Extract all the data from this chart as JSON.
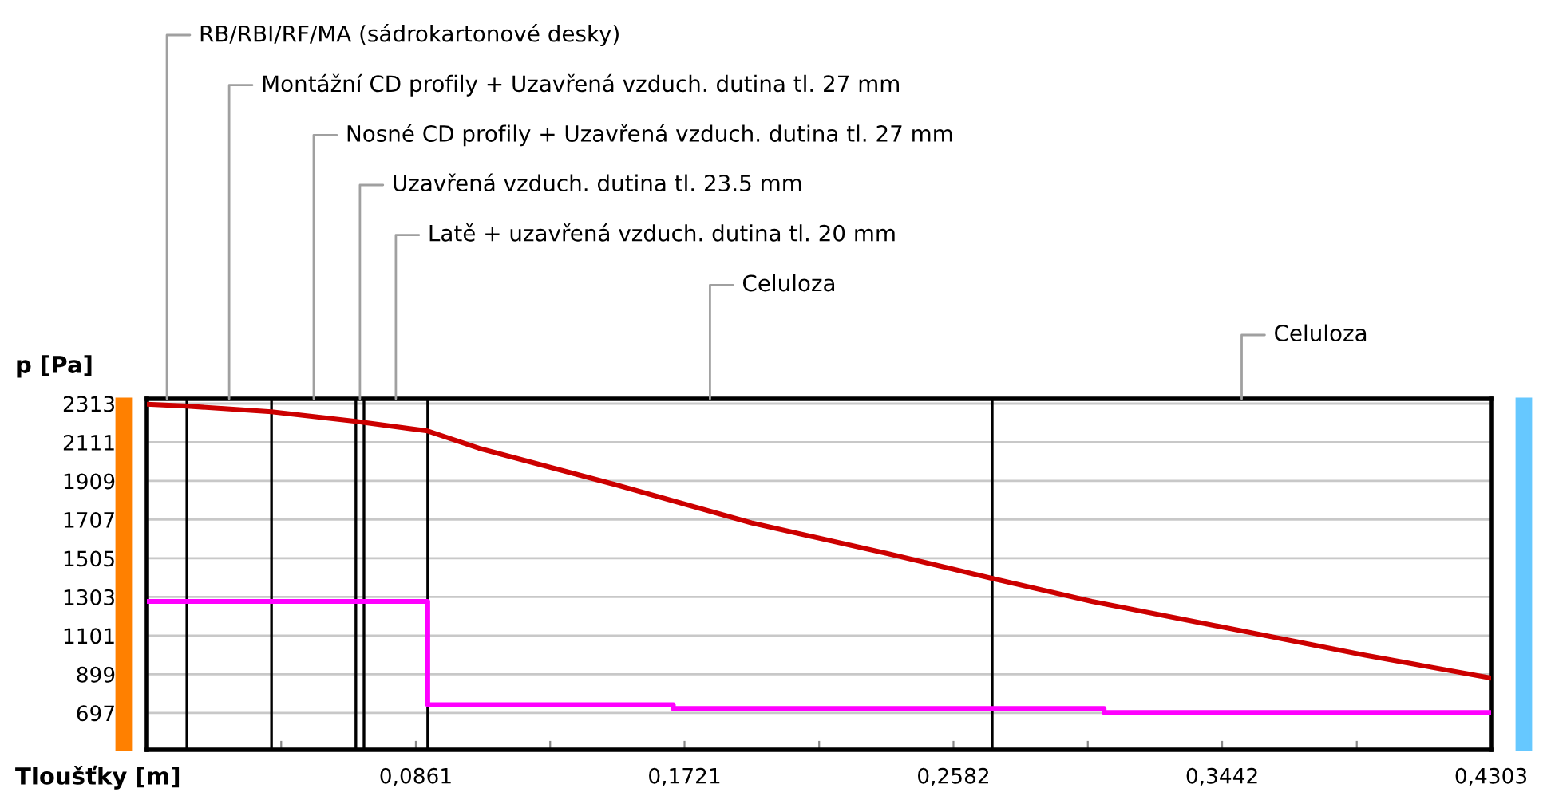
{
  "chart_data": {
    "type": "line",
    "xlabel": "Tloušťky [m]",
    "ylabel": "p [Pa]",
    "xlim": [
      0,
      0.4303
    ],
    "ylim": [
      505,
      2338
    ],
    "xticks": [
      {
        "value": 0,
        "label": null
      },
      {
        "value": 0.043,
        "label": null
      },
      {
        "value": 0.0861,
        "label": "0,0861"
      },
      {
        "value": 0.1291,
        "label": null
      },
      {
        "value": 0.1721,
        "label": "0,1721"
      },
      {
        "value": 0.2152,
        "label": null
      },
      {
        "value": 0.2582,
        "label": "0,2582"
      },
      {
        "value": 0.3012,
        "label": null
      },
      {
        "value": 0.3442,
        "label": "0,3442"
      },
      {
        "value": 0.3873,
        "label": null
      },
      {
        "value": 0.4303,
        "label": "0,4303"
      }
    ],
    "yticks": [
      697,
      899,
      1101,
      1303,
      1505,
      1707,
      1909,
      2111,
      2313
    ],
    "grid": "y",
    "series": [
      {
        "color": "#cc0000",
        "x": [
          0,
          0.0128,
          0.0399,
          0.0669,
          0.0899,
          0.1063,
          0.1499,
          0.1935,
          0.2371,
          0.2707,
          0.3025,
          0.3461,
          0.3897,
          0.43
        ],
        "values": [
          2310,
          2300,
          2270,
          2220,
          2170,
          2080,
          1890,
          1690,
          1530,
          1400,
          1280,
          1140,
          1000,
          880
        ]
      },
      {
        "type": "step",
        "color": "#ff00ff",
        "x": [
          0,
          0.0899,
          0.1685,
          0.3064,
          0.4303
        ],
        "values": [
          1280,
          740,
          720,
          700,
          700
        ]
      }
    ],
    "ref_lines": [
      {
        "axis": "x",
        "value": 0.0128,
        "color": "#000000"
      },
      {
        "axis": "x",
        "value": 0.0399,
        "color": "#000000"
      },
      {
        "axis": "x",
        "value": 0.0669,
        "color": "#000000"
      },
      {
        "axis": "x",
        "value": 0.0695,
        "color": "#000000"
      },
      {
        "axis": "x",
        "value": 0.0899,
        "color": "#000000"
      },
      {
        "axis": "x",
        "value": 0.2706,
        "color": "#000000"
      }
    ],
    "annotations": [
      {
        "text": "RB/RBI/RF/MA (sádrokartonové desky)",
        "x": 0.0064,
        "y": 2338
      },
      "Montážní CD profily + Uzavřená vzduch. dutina tl. 27 mm",
      "Nosné CD profily + Uzavřená vzduch. dutina tl. 27 mm",
      {
        "text": "Uzavřená vzduch. dutina tl. 23.5 mm",
        "x": 0.0682,
        "y": 2338
      },
      "Latě + uzavřená vzduch. dutina tl. 20 mm",
      "Celuloza",
      "Celuloza"
    ]
  }
}
